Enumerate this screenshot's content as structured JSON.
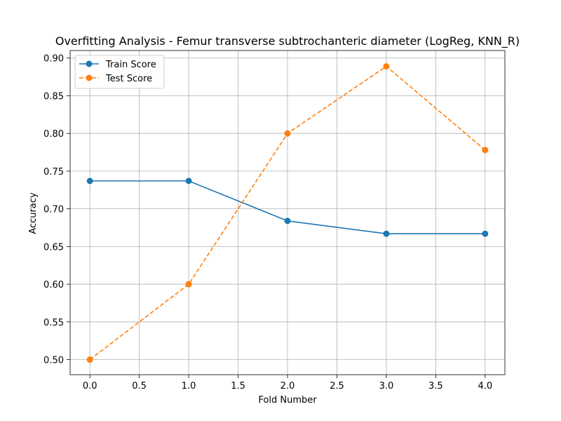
{
  "chart_data": {
    "type": "line",
    "title": "Overfitting Analysis - Femur transverse subtrochanteric diameter (LogReg, KNN_R)",
    "xlabel": "Fold Number",
    "ylabel": "Accuracy",
    "x": [
      0,
      1,
      2,
      3,
      4
    ],
    "xlim": [
      -0.2,
      4.2
    ],
    "ylim": [
      0.48,
      0.91
    ],
    "xticks": [
      "0.0",
      "0.5",
      "1.0",
      "1.5",
      "2.0",
      "2.5",
      "3.0",
      "3.5",
      "4.0"
    ],
    "yticks": [
      "0.50",
      "0.55",
      "0.60",
      "0.65",
      "0.70",
      "0.75",
      "0.80",
      "0.85",
      "0.90"
    ],
    "grid": true,
    "legend_position": "top-left",
    "series": [
      {
        "name": "Train Score",
        "values": [
          0.737,
          0.737,
          0.684,
          0.667,
          0.667
        ],
        "color": "#1f77b4",
        "dash": "solid"
      },
      {
        "name": "Test Score",
        "values": [
          0.5,
          0.6,
          0.8,
          0.889,
          0.778
        ],
        "color": "#ff7f0e",
        "dash": "dashed"
      }
    ]
  }
}
